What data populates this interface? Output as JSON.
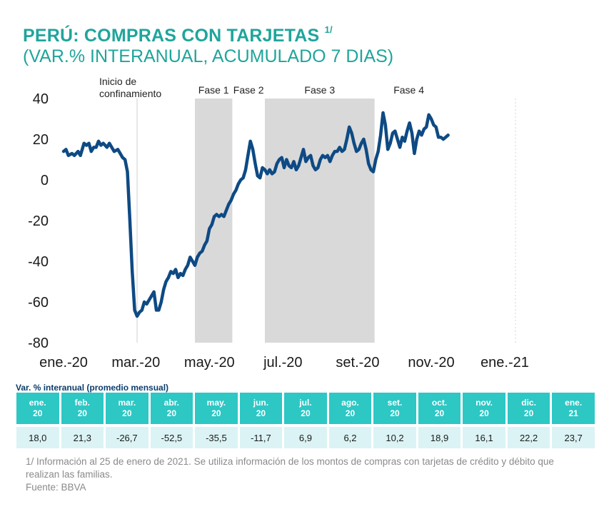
{
  "title": {
    "main": "PERÚ: COMPRAS CON TARJETAS",
    "superscript": "1/",
    "subtitle": "(VAR.% INTERANUAL, ACUMULADO 7 DIAS)"
  },
  "chart_data": {
    "type": "line",
    "title": "PERÚ: COMPRAS CON TARJETAS 1/ (VAR.% INTERANUAL, ACUMULADO 7 DIAS)",
    "ylim": [
      -80,
      40
    ],
    "yticks": [
      40,
      20,
      0,
      -20,
      -40,
      -60,
      -80
    ],
    "xlim_days": [
      -5,
      390
    ],
    "xticks": [
      {
        "day": 0,
        "label": "ene.-20"
      },
      {
        "day": 60,
        "label": "mar.-20"
      },
      {
        "day": 121,
        "label": "may.-20"
      },
      {
        "day": 182,
        "label": "jul.-20"
      },
      {
        "day": 244,
        "label": "set.-20"
      },
      {
        "day": 305,
        "label": "nov.-20"
      },
      {
        "day": 366,
        "label": "ene.-21"
      }
    ],
    "x_unit": "days since 1 Jan 2020",
    "series": [
      {
        "name": "Compras con tarjetas (var.% interanual, acumulado 7 días)",
        "color": "#0e4a84",
        "points": [
          [
            0,
            14
          ],
          [
            2,
            15
          ],
          [
            4,
            12
          ],
          [
            7,
            13
          ],
          [
            9,
            12
          ],
          [
            12,
            14
          ],
          [
            14,
            12
          ],
          [
            17,
            18
          ],
          [
            19,
            17
          ],
          [
            21,
            18
          ],
          [
            23,
            14
          ],
          [
            25,
            16
          ],
          [
            27,
            16
          ],
          [
            29,
            19
          ],
          [
            31,
            17
          ],
          [
            33,
            18
          ],
          [
            36,
            16
          ],
          [
            38,
            18
          ],
          [
            40,
            16
          ],
          [
            42,
            14
          ],
          [
            45,
            15
          ],
          [
            47,
            13
          ],
          [
            49,
            11
          ],
          [
            51,
            10
          ],
          [
            53,
            4
          ],
          [
            55,
            -20
          ],
          [
            57,
            -45
          ],
          [
            59,
            -64
          ],
          [
            61,
            -67
          ],
          [
            63,
            -65
          ],
          [
            65,
            -64
          ],
          [
            67,
            -60
          ],
          [
            69,
            -61
          ],
          [
            71,
            -59
          ],
          [
            73,
            -57
          ],
          [
            75,
            -55
          ],
          [
            77,
            -64
          ],
          [
            79,
            -64
          ],
          [
            81,
            -60
          ],
          [
            83,
            -54
          ],
          [
            85,
            -50
          ],
          [
            87,
            -48
          ],
          [
            89,
            -45
          ],
          [
            91,
            -46
          ],
          [
            93,
            -44
          ],
          [
            95,
            -48
          ],
          [
            97,
            -46
          ],
          [
            99,
            -47
          ],
          [
            101,
            -44
          ],
          [
            103,
            -42
          ],
          [
            105,
            -38
          ],
          [
            107,
            -40
          ],
          [
            109,
            -42
          ],
          [
            111,
            -38
          ],
          [
            113,
            -36
          ],
          [
            115,
            -35
          ],
          [
            117,
            -32
          ],
          [
            119,
            -30
          ],
          [
            121,
            -24
          ],
          [
            123,
            -22
          ],
          [
            125,
            -18
          ],
          [
            127,
            -17
          ],
          [
            129,
            -18
          ],
          [
            131,
            -17
          ],
          [
            133,
            -18
          ],
          [
            135,
            -15
          ],
          [
            137,
            -12
          ],
          [
            139,
            -10
          ],
          [
            141,
            -7
          ],
          [
            143,
            -5
          ],
          [
            145,
            -2
          ],
          [
            147,
            0
          ],
          [
            149,
            1
          ],
          [
            151,
            5
          ],
          [
            153,
            12
          ],
          [
            155,
            19
          ],
          [
            157,
            15
          ],
          [
            159,
            8
          ],
          [
            161,
            2
          ],
          [
            163,
            1
          ],
          [
            165,
            6
          ],
          [
            167,
            5
          ],
          [
            169,
            3
          ],
          [
            171,
            5
          ],
          [
            173,
            3
          ],
          [
            175,
            4
          ],
          [
            177,
            8
          ],
          [
            179,
            10
          ],
          [
            181,
            11
          ],
          [
            183,
            6
          ],
          [
            185,
            10
          ],
          [
            187,
            7
          ],
          [
            189,
            6
          ],
          [
            191,
            9
          ],
          [
            193,
            5
          ],
          [
            195,
            7
          ],
          [
            197,
            11
          ],
          [
            199,
            15
          ],
          [
            201,
            9
          ],
          [
            203,
            11
          ],
          [
            205,
            12
          ],
          [
            207,
            7
          ],
          [
            209,
            5
          ],
          [
            211,
            6
          ],
          [
            213,
            10
          ],
          [
            215,
            12
          ],
          [
            217,
            11
          ],
          [
            219,
            12
          ],
          [
            221,
            9
          ],
          [
            223,
            12
          ],
          [
            225,
            14
          ],
          [
            227,
            14
          ],
          [
            229,
            16
          ],
          [
            231,
            14
          ],
          [
            233,
            15
          ],
          [
            235,
            20
          ],
          [
            237,
            26
          ],
          [
            239,
            23
          ],
          [
            241,
            18
          ],
          [
            243,
            14
          ],
          [
            245,
            15
          ],
          [
            247,
            18
          ],
          [
            249,
            20
          ],
          [
            251,
            15
          ],
          [
            253,
            8
          ],
          [
            255,
            5
          ],
          [
            257,
            4
          ],
          [
            259,
            10
          ],
          [
            261,
            14
          ],
          [
            263,
            22
          ],
          [
            265,
            33
          ],
          [
            267,
            27
          ],
          [
            269,
            15
          ],
          [
            271,
            18
          ],
          [
            273,
            23
          ],
          [
            275,
            24
          ],
          [
            277,
            20
          ],
          [
            279,
            16
          ],
          [
            281,
            21
          ],
          [
            283,
            19
          ],
          [
            285,
            24
          ],
          [
            287,
            28
          ],
          [
            289,
            23
          ],
          [
            291,
            13
          ],
          [
            293,
            20
          ],
          [
            295,
            24
          ],
          [
            297,
            22
          ],
          [
            299,
            25
          ],
          [
            301,
            26
          ],
          [
            303,
            32
          ],
          [
            305,
            30
          ],
          [
            307,
            27
          ],
          [
            309,
            26
          ],
          [
            311,
            21
          ],
          [
            313,
            21
          ],
          [
            315,
            20
          ],
          [
            317,
            21
          ],
          [
            319,
            22
          ]
        ]
      }
    ],
    "shaded_regions": [
      {
        "label": "Fase 1",
        "from_day": 109,
        "to_day": 140
      },
      {
        "label": "Fase 2",
        "from_day": 140,
        "to_day": 167
      },
      {
        "label": "Fase 3",
        "from_day": 167,
        "to_day": 258
      },
      {
        "label": "Fase 4",
        "from_day": 258,
        "to_day": 390
      }
    ],
    "annotations": [
      {
        "text": "Inicio de confinamiento",
        "day": 61
      }
    ]
  },
  "table": {
    "caption": "Var. % interanual (promedio mensual)",
    "months": [
      {
        "month": "ene.",
        "year": "20",
        "value": "18,0"
      },
      {
        "month": "feb.",
        "year": "20",
        "value": "21,3"
      },
      {
        "month": "mar.",
        "year": "20",
        "value": "-26,7"
      },
      {
        "month": "abr.",
        "year": "20",
        "value": "-52,5"
      },
      {
        "month": "may.",
        "year": "20",
        "value": "-35,5"
      },
      {
        "month": "jun.",
        "year": "20",
        "value": "-11,7"
      },
      {
        "month": "jul.",
        "year": "20",
        "value": "6,9"
      },
      {
        "month": "ago.",
        "year": "20",
        "value": "6,2"
      },
      {
        "month": "set.",
        "year": "20",
        "value": "10,2"
      },
      {
        "month": "oct.",
        "year": "20",
        "value": "18,9"
      },
      {
        "month": "nov.",
        "year": "20",
        "value": "16,1"
      },
      {
        "month": "dic.",
        "year": "20",
        "value": "22,2"
      },
      {
        "month": "ene.",
        "year": "21",
        "value": "23,7"
      }
    ]
  },
  "footnote": {
    "note": "1/ Información al 25 de enero de 2021. Se utiliza información de los montos de compras con tarjetas de crédito y débito que realizan las familias.",
    "source": "Fuente: BBVA"
  },
  "colors": {
    "title": "#1fa59b",
    "line": "#0e4a84",
    "shade": "#d9d9d9",
    "header": "#2dc7c4",
    "cell": "#dbf3f4"
  }
}
